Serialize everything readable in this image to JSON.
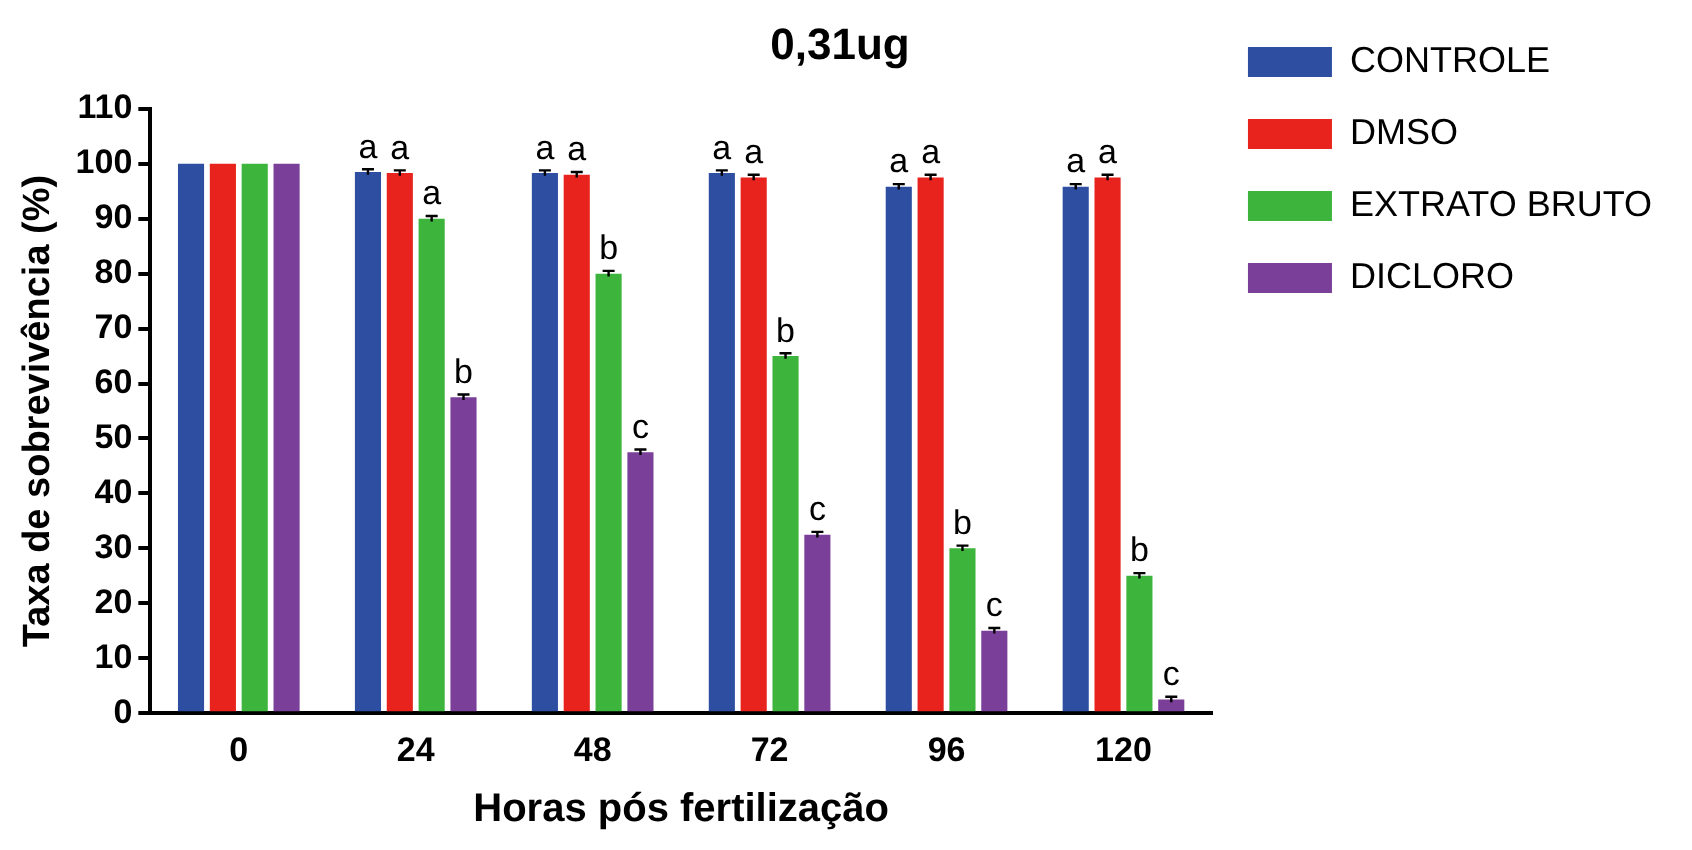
{
  "chart_data": {
    "type": "bar",
    "title": "0,31ug",
    "xlabel": "Horas pós fertilização",
    "ylabel": "Taxa de sobrevivência (%)",
    "categories": [
      "0",
      "24",
      "48",
      "72",
      "96",
      "120"
    ],
    "series": [
      {
        "name": "CONTROLE",
        "color": "#2e4ea2",
        "values": [
          100,
          98.5,
          98.3,
          98.3,
          95.8,
          95.8
        ],
        "errors": [
          null,
          0.5,
          0.5,
          0.5,
          0.5,
          0.5
        ],
        "value_labels": [
          null,
          "a",
          "a",
          "a",
          "a",
          "a"
        ]
      },
      {
        "name": "DMSO",
        "color": "#e8221c",
        "values": [
          100,
          98.3,
          98,
          97.5,
          97.5,
          97.5
        ],
        "errors": [
          null,
          0.5,
          0.5,
          0.5,
          0.5,
          0.5
        ],
        "value_labels": [
          null,
          "a",
          "a",
          "a",
          "a",
          "a"
        ]
      },
      {
        "name": "EXTRATO BRUTO",
        "color": "#3db53d",
        "values": [
          100,
          90,
          80,
          65,
          30,
          25
        ],
        "errors": [
          null,
          0.5,
          0.5,
          0.5,
          0.5,
          0.5
        ],
        "value_labels": [
          null,
          "a",
          "b",
          "b",
          "b",
          "b"
        ]
      },
      {
        "name": "DICLORO",
        "color": "#7a3f98",
        "values": [
          100,
          57.5,
          47.5,
          32.5,
          15,
          2.5
        ],
        "errors": [
          null,
          0.5,
          0.5,
          0.5,
          0.5,
          0.5
        ],
        "value_labels": [
          null,
          "b",
          "c",
          "c",
          "c",
          "c"
        ]
      }
    ],
    "ylim": [
      0,
      110
    ],
    "yticks": [
      0,
      10,
      20,
      30,
      40,
      50,
      60,
      70,
      80,
      90,
      100,
      110
    ],
    "grid": false,
    "legend": "top right"
  }
}
